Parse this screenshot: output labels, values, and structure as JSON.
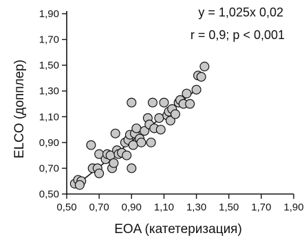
{
  "chart_data": {
    "type": "scatter",
    "xlabel": "EOA (катетеризация)",
    "ylabel": "ELCO (допплер)",
    "xlim": [
      0.5,
      1.9
    ],
    "ylim": [
      0.5,
      1.9
    ],
    "x_ticks": [
      "0,50",
      "0,70",
      "0,90",
      "1,10",
      "1,30",
      "1,50",
      "1,70",
      "1,90"
    ],
    "y_ticks": [
      "0,50",
      "0,70",
      "0,90",
      "1,10",
      "1,30",
      "1,50",
      "1,70",
      "1,90"
    ],
    "annotations": [
      "y = 1,025x  0,02",
      "r = 0,9; p < 0,001"
    ],
    "regression_line": {
      "x": [
        0.56,
        1.32
      ],
      "y": [
        0.57,
        1.33
      ]
    },
    "points": [
      {
        "x": 0.55,
        "y": 0.58
      },
      {
        "x": 0.57,
        "y": 0.61
      },
      {
        "x": 0.59,
        "y": 0.6
      },
      {
        "x": 0.58,
        "y": 0.57
      },
      {
        "x": 0.66,
        "y": 0.7
      },
      {
        "x": 0.65,
        "y": 0.88
      },
      {
        "x": 0.69,
        "y": 0.7
      },
      {
        "x": 0.7,
        "y": 0.66
      },
      {
        "x": 0.7,
        "y": 0.81
      },
      {
        "x": 0.74,
        "y": 0.77
      },
      {
        "x": 0.75,
        "y": 0.81
      },
      {
        "x": 0.77,
        "y": 0.8
      },
      {
        "x": 0.78,
        "y": 0.7
      },
      {
        "x": 0.79,
        "y": 0.74
      },
      {
        "x": 0.81,
        "y": 0.84
      },
      {
        "x": 0.8,
        "y": 0.97
      },
      {
        "x": 0.82,
        "y": 0.81
      },
      {
        "x": 0.84,
        "y": 0.82
      },
      {
        "x": 0.86,
        "y": 0.9
      },
      {
        "x": 0.87,
        "y": 0.8
      },
      {
        "x": 0.88,
        "y": 0.92
      },
      {
        "x": 0.89,
        "y": 0.96
      },
      {
        "x": 0.9,
        "y": 0.7
      },
      {
        "x": 0.9,
        "y": 1.21
      },
      {
        "x": 0.91,
        "y": 0.88
      },
      {
        "x": 0.92,
        "y": 0.97
      },
      {
        "x": 0.93,
        "y": 1.01
      },
      {
        "x": 0.95,
        "y": 0.93
      },
      {
        "x": 0.96,
        "y": 0.9
      },
      {
        "x": 0.98,
        "y": 0.99
      },
      {
        "x": 1.0,
        "y": 1.09
      },
      {
        "x": 1.01,
        "y": 1.04
      },
      {
        "x": 1.02,
        "y": 0.9
      },
      {
        "x": 1.03,
        "y": 1.21
      },
      {
        "x": 1.04,
        "y": 1.01
      },
      {
        "x": 1.07,
        "y": 1.09
      },
      {
        "x": 1.08,
        "y": 1.0
      },
      {
        "x": 1.1,
        "y": 1.21
      },
      {
        "x": 1.12,
        "y": 1.11
      },
      {
        "x": 1.13,
        "y": 1.14
      },
      {
        "x": 1.14,
        "y": 1.07
      },
      {
        "x": 1.15,
        "y": 1.16
      },
      {
        "x": 1.17,
        "y": 1.12
      },
      {
        "x": 1.19,
        "y": 1.21
      },
      {
        "x": 1.2,
        "y": 1.23
      },
      {
        "x": 1.22,
        "y": 1.2
      },
      {
        "x": 1.24,
        "y": 1.28
      },
      {
        "x": 1.26,
        "y": 1.2
      },
      {
        "x": 1.3,
        "y": 1.31
      },
      {
        "x": 1.31,
        "y": 1.42
      },
      {
        "x": 1.33,
        "y": 1.41
      },
      {
        "x": 1.35,
        "y": 1.49
      }
    ],
    "grid": false,
    "marker_fill": "#c8c8c8",
    "marker_stroke": "#111111",
    "line_color": "#111111"
  }
}
